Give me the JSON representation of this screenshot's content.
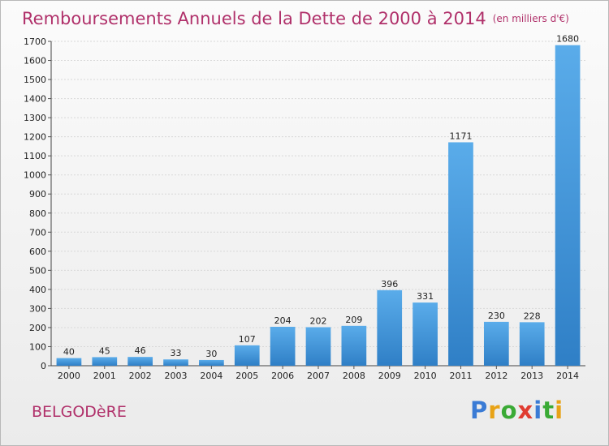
{
  "header": {
    "title": "Remboursements Annuels de la Dette de 2000 à 2014",
    "unit": "(en milliers d'€)"
  },
  "footer": {
    "commune": "BELGODèRE",
    "logo": {
      "letters": [
        "P",
        "r",
        "o",
        "x",
        "i",
        "t",
        "i"
      ],
      "colors": [
        "#3a7bd5",
        "#e8a317",
        "#3aaa35",
        "#e03c31",
        "#3a7bd5",
        "#3aaa35",
        "#e8a317"
      ]
    }
  },
  "colors": {
    "bar_light": "#5aacea",
    "bar_dark": "#2f7fc6",
    "title": "#b0306a",
    "grid": "#d8d8d8"
  },
  "chart_data": {
    "type": "bar",
    "title": "Remboursements Annuels de la Dette de 2000 à 2014",
    "subtitle": "(en milliers d'€)",
    "categories": [
      "2000",
      "2001",
      "2002",
      "2003",
      "2004",
      "2005",
      "2006",
      "2007",
      "2008",
      "2009",
      "2010",
      "2011",
      "2012",
      "2013",
      "2014"
    ],
    "values": [
      40,
      45,
      46,
      33,
      30,
      107,
      204,
      202,
      209,
      396,
      331,
      1171,
      230,
      228,
      1680
    ],
    "ylim": [
      0,
      1700
    ],
    "yticks": [
      0,
      100,
      200,
      300,
      400,
      500,
      600,
      700,
      800,
      900,
      1000,
      1100,
      1200,
      1300,
      1400,
      1500,
      1600,
      1700
    ],
    "grid": true,
    "data_labels": true
  }
}
